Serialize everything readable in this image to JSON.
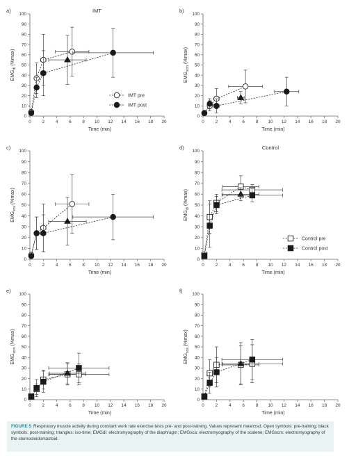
{
  "chart_data": [
    {
      "panel": "a)",
      "type": "scatter",
      "title": "IMT",
      "ylabel_base": "EMG",
      "ylabel_sub": "di",
      "ylabel_unit": " (%max)",
      "xlabel": "Time (min)",
      "xlim": [
        0,
        20
      ],
      "ylim": [
        0,
        100
      ],
      "xticks": [
        0,
        2,
        4,
        6,
        8,
        10,
        12,
        14,
        16,
        18,
        20
      ],
      "yticks": [
        0,
        10,
        20,
        30,
        40,
        50,
        60,
        70,
        80,
        90,
        100
      ],
      "legend": {
        "position": "bottom-right",
        "entries": [
          "IMT pre",
          "IMT post"
        ]
      },
      "series": [
        {
          "name": "IMT pre",
          "marker": "circle-open",
          "line": "dashed",
          "points": [
            {
              "x": 0.2,
              "y": 4,
              "xerr": 0,
              "yerr": 0
            },
            {
              "x": 1.0,
              "y": 37,
              "xerr": 0.3,
              "yerr": 15
            },
            {
              "x": 2.0,
              "y": 55,
              "xerr": 0.4,
              "yerr": 25
            },
            {
              "x": 6.3,
              "y": 63,
              "xerr": 2.5,
              "yerr": 24
            }
          ]
        },
        {
          "name": "",
          "marker": "triangle-filled",
          "line": "dashed",
          "points": [
            {
              "x": 5.6,
              "y": 55,
              "xerr": 2.8,
              "yerr": 24
            }
          ]
        },
        {
          "name": "IMT post",
          "marker": "circle-filled",
          "line": "dashed",
          "points": [
            {
              "x": 0.2,
              "y": 3,
              "xerr": 0,
              "yerr": 0
            },
            {
              "x": 1.0,
              "y": 28,
              "xerr": 0.3,
              "yerr": 10
            },
            {
              "x": 2.0,
              "y": 42,
              "xerr": 0.4,
              "yerr": 22
            },
            {
              "x": 12.4,
              "y": 62,
              "xerr": 6.0,
              "yerr": 24
            }
          ]
        }
      ]
    },
    {
      "panel": "b)",
      "type": "scatter",
      "title": "",
      "ylabel_base": "EMG",
      "ylabel_sub": "scm",
      "ylabel_unit": " (%max)",
      "xlabel": "Time (min)",
      "xlim": [
        0,
        20
      ],
      "ylim": [
        0,
        100
      ],
      "xticks": [
        0,
        2,
        4,
        6,
        8,
        10,
        12,
        14,
        16,
        18,
        20
      ],
      "yticks": [
        0,
        10,
        20,
        30,
        40,
        50,
        60,
        70,
        80,
        90,
        100
      ],
      "series": [
        {
          "name": "",
          "marker": "circle-open",
          "line": "dashed",
          "points": [
            {
              "x": 0.2,
              "y": 3,
              "xerr": 0,
              "yerr": 0
            },
            {
              "x": 1.0,
              "y": 10,
              "xerr": 0.3,
              "yerr": 5
            },
            {
              "x": 2.0,
              "y": 17,
              "xerr": 0.4,
              "yerr": 10
            },
            {
              "x": 6.3,
              "y": 29,
              "xerr": 2.5,
              "yerr": 16
            }
          ]
        },
        {
          "name": "",
          "marker": "triangle-filled",
          "line": "dashed",
          "points": [
            {
              "x": 5.6,
              "y": 18,
              "xerr": 0.5,
              "yerr": 6
            }
          ]
        },
        {
          "name": "",
          "marker": "circle-filled",
          "line": "dashed",
          "points": [
            {
              "x": 0.2,
              "y": 3,
              "xerr": 0,
              "yerr": 0
            },
            {
              "x": 1.0,
              "y": 12,
              "xerr": 0.3,
              "yerr": 5
            },
            {
              "x": 2.0,
              "y": 10,
              "xerr": 0.4,
              "yerr": 7
            },
            {
              "x": 12.4,
              "y": 24,
              "xerr": 1.8,
              "yerr": 14
            }
          ]
        }
      ]
    },
    {
      "panel": "c)",
      "type": "scatter",
      "title": "",
      "ylabel_base": "EMG",
      "ylabel_sub": "sca",
      "ylabel_unit": " (%max)",
      "xlabel": "Time (min)",
      "xlim": [
        0,
        20
      ],
      "ylim": [
        0,
        100
      ],
      "xticks": [
        0,
        2,
        4,
        6,
        8,
        10,
        12,
        14,
        16,
        18,
        20
      ],
      "yticks": [
        0,
        10,
        20,
        30,
        40,
        50,
        60,
        70,
        80,
        90,
        100
      ],
      "series": [
        {
          "name": "",
          "marker": "circle-open",
          "line": "dashed",
          "points": [
            {
              "x": 0.2,
              "y": 4,
              "xerr": 0,
              "yerr": 0
            },
            {
              "x": 1.0,
              "y": 24,
              "xerr": 0.3,
              "yerr": 15
            },
            {
              "x": 2.0,
              "y": 29,
              "xerr": 0.4,
              "yerr": 22
            },
            {
              "x": 6.3,
              "y": 51,
              "xerr": 2.5,
              "yerr": 27
            }
          ]
        },
        {
          "name": "",
          "marker": "triangle-filled",
          "line": "dashed",
          "points": [
            {
              "x": 5.6,
              "y": 35,
              "xerr": 2.8,
              "yerr": 22
            }
          ]
        },
        {
          "name": "",
          "marker": "circle-filled",
          "line": "dashed",
          "points": [
            {
              "x": 0.2,
              "y": 3,
              "xerr": 0,
              "yerr": 0
            },
            {
              "x": 1.0,
              "y": 24,
              "xerr": 0.3,
              "yerr": 15
            },
            {
              "x": 2.0,
              "y": 24,
              "xerr": 0.4,
              "yerr": 17
            },
            {
              "x": 12.4,
              "y": 39,
              "xerr": 6.0,
              "yerr": 21
            }
          ]
        }
      ]
    },
    {
      "panel": "d)",
      "type": "scatter",
      "title": "Control",
      "ylabel_base": "EMG",
      "ylabel_sub": "di",
      "ylabel_unit": " (%max)",
      "xlabel": "Time (min)",
      "xlim": [
        0,
        20
      ],
      "ylim": [
        0,
        100
      ],
      "xticks": [
        0,
        2,
        4,
        6,
        8,
        10,
        12,
        14,
        16,
        18,
        20
      ],
      "yticks": [
        0,
        10,
        20,
        30,
        40,
        50,
        60,
        70,
        80,
        90,
        100
      ],
      "legend": {
        "position": "bottom-right",
        "entries": [
          "Control pre",
          "Control post"
        ]
      },
      "series": [
        {
          "name": "Control pre",
          "marker": "square-open",
          "line": "dashed",
          "points": [
            {
              "x": 0.2,
              "y": 4,
              "xerr": 0,
              "yerr": 0
            },
            {
              "x": 1.0,
              "y": 39,
              "xerr": 0.3,
              "yerr": 15
            },
            {
              "x": 2.0,
              "y": 52,
              "xerr": 0.4,
              "yerr": 8
            },
            {
              "x": 5.6,
              "y": 67,
              "xerr": 2.7,
              "yerr": 10
            },
            {
              "x": 7.3,
              "y": 64,
              "xerr": 4.5,
              "yerr": 5
            }
          ]
        },
        {
          "name": "",
          "marker": "triangle-filled",
          "line": "dashed",
          "points": [
            {
              "x": 5.6,
              "y": 60,
              "xerr": 2.7,
              "yerr": 6
            }
          ]
        },
        {
          "name": "Control post",
          "marker": "square-filled",
          "line": "dashed",
          "points": [
            {
              "x": 0.2,
              "y": 3,
              "xerr": 0,
              "yerr": 0
            },
            {
              "x": 1.0,
              "y": 31,
              "xerr": 0.3,
              "yerr": 20
            },
            {
              "x": 2.0,
              "y": 50,
              "xerr": 0.4,
              "yerr": 8
            },
            {
              "x": 7.3,
              "y": 59,
              "xerr": 4.5,
              "yerr": 6
            }
          ]
        }
      ]
    },
    {
      "panel": "e)",
      "type": "scatter",
      "title": "",
      "ylabel_base": "EMG",
      "ylabel_sub": "scm",
      "ylabel_unit": " (%max)",
      "xlabel": "Time (min)",
      "xlim": [
        0,
        20
      ],
      "ylim": [
        0,
        100
      ],
      "xticks": [
        0,
        2,
        4,
        6,
        8,
        10,
        12,
        14,
        16,
        18,
        20
      ],
      "yticks": [
        0,
        10,
        20,
        30,
        40,
        50,
        60,
        70,
        80,
        90,
        100
      ],
      "series": [
        {
          "name": "",
          "marker": "square-open",
          "line": "dashed",
          "points": [
            {
              "x": 0.2,
              "y": 3,
              "xerr": 0,
              "yerr": 0
            },
            {
              "x": 1.0,
              "y": 10,
              "xerr": 0.3,
              "yerr": 5
            },
            {
              "x": 2.0,
              "y": 19,
              "xerr": 0.4,
              "yerr": 9
            },
            {
              "x": 5.6,
              "y": 24,
              "xerr": 2.7,
              "yerr": 10
            },
            {
              "x": 7.3,
              "y": 24,
              "xerr": 4.5,
              "yerr": 10
            }
          ]
        },
        {
          "name": "",
          "marker": "triangle-filled",
          "line": "dashed",
          "points": [
            {
              "x": 5.6,
              "y": 25,
              "xerr": 2.7,
              "yerr": 10
            }
          ]
        },
        {
          "name": "",
          "marker": "square-filled",
          "line": "dashed",
          "points": [
            {
              "x": 0.2,
              "y": 3,
              "xerr": 0,
              "yerr": 0
            },
            {
              "x": 1.0,
              "y": 11,
              "xerr": 0.3,
              "yerr": 8
            },
            {
              "x": 2.0,
              "y": 17,
              "xerr": 0.4,
              "yerr": 10
            },
            {
              "x": 7.3,
              "y": 30,
              "xerr": 4.5,
              "yerr": 14
            }
          ]
        }
      ]
    },
    {
      "panel": "f)",
      "type": "scatter",
      "title": "",
      "ylabel_base": "EMG",
      "ylabel_sub": "sca",
      "ylabel_unit": " (%max)",
      "xlabel": "Time (min)",
      "xlim": [
        0,
        20
      ],
      "ylim": [
        0,
        100
      ],
      "xticks": [
        0,
        2,
        4,
        6,
        8,
        10,
        12,
        14,
        16,
        18,
        20
      ],
      "yticks": [
        0,
        10,
        20,
        30,
        40,
        50,
        60,
        70,
        80,
        90,
        100
      ],
      "series": [
        {
          "name": "",
          "marker": "square-open",
          "line": "dashed",
          "points": [
            {
              "x": 0.2,
              "y": 3,
              "xerr": 0,
              "yerr": 0
            },
            {
              "x": 1.0,
              "y": 25,
              "xerr": 0.3,
              "yerr": 13
            },
            {
              "x": 2.0,
              "y": 33,
              "xerr": 0.4,
              "yerr": 17
            },
            {
              "x": 5.6,
              "y": 33,
              "xerr": 2.7,
              "yerr": 18
            },
            {
              "x": 7.3,
              "y": 34,
              "xerr": 4.5,
              "yerr": 18
            }
          ]
        },
        {
          "name": "",
          "marker": "triangle-filled",
          "line": "dashed",
          "points": [
            {
              "x": 5.6,
              "y": 34,
              "xerr": 2.7,
              "yerr": 20
            }
          ]
        },
        {
          "name": "",
          "marker": "square-filled",
          "line": "dashed",
          "points": [
            {
              "x": 0.2,
              "y": 3,
              "xerr": 0,
              "yerr": 0
            },
            {
              "x": 1.0,
              "y": 16,
              "xerr": 0.3,
              "yerr": 10
            },
            {
              "x": 2.0,
              "y": 26,
              "xerr": 0.4,
              "yerr": 14
            },
            {
              "x": 7.3,
              "y": 38,
              "xerr": 4.5,
              "yerr": 19
            }
          ]
        }
      ]
    }
  ],
  "caption": {
    "label": "FIGURE 5",
    "text": "Respiratory muscle activity during constant work rate exercise tests pre- and post-training. Values represent mean±sd. Open symbols: pre-training; black symbols: post-training; triangles: iso-time; EMGdi: electromyography of the diaphragm; EMGsca: electromyography of the scalene; EMGscm: electromyography of the sternocleidomastoid."
  }
}
